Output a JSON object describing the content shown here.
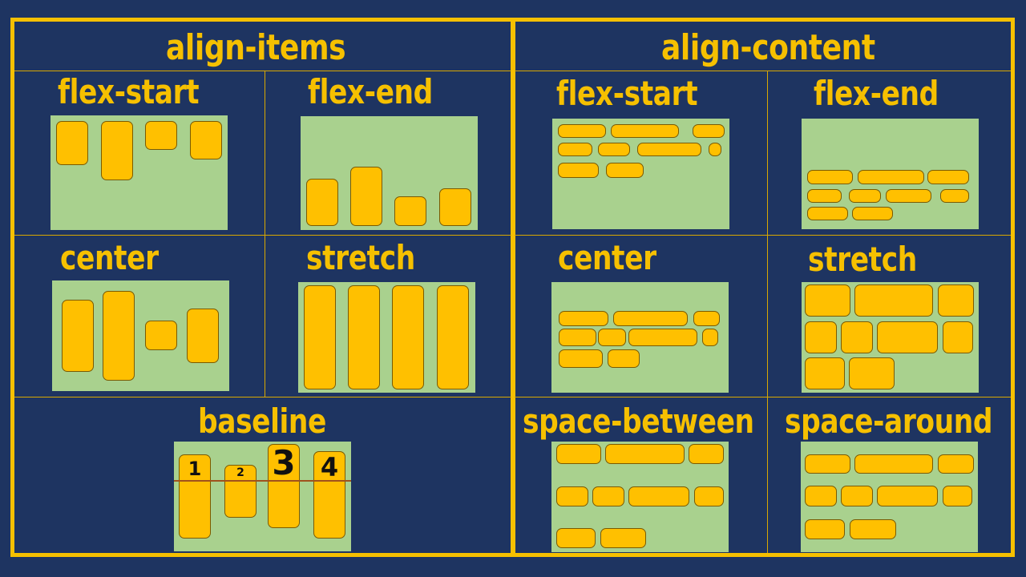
{
  "align_items": {
    "heading": "align-items",
    "flex_start": "flex-start",
    "flex_end": "flex-end",
    "center": "center",
    "stretch": "stretch",
    "baseline": "baseline",
    "baseline_numbers": [
      "1",
      "2",
      "3",
      "4"
    ]
  },
  "align_content": {
    "heading": "align-content",
    "flex_start": "flex-start",
    "flex_end": "flex-end",
    "center": "center",
    "stretch": "stretch",
    "space_between": "space-between",
    "space_around": "space-around"
  },
  "colors": {
    "background": "#1e3461",
    "accent": "#f6c000",
    "container": "#a9d18e",
    "item": "#ffc000",
    "baseline_line": "#a0521d"
  }
}
